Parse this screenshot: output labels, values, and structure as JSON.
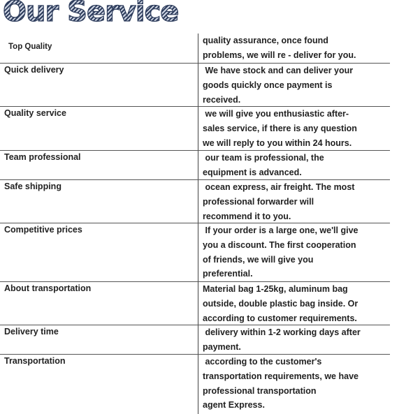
{
  "title": "Our Service",
  "rows": [
    {
      "label": "Top Quality",
      "text": "quality assurance, once found\nproblems, we will re - deliver for you."
    },
    {
      "label": "Quick delivery",
      "text": " We have stock and can deliver your\ngoods quickly once payment is\nreceived."
    },
    {
      "label": "Quality service",
      "text": " we will give you enthusiastic after-\nsales service, if there is any question\nwe will reply to you within 24 hours."
    },
    {
      "label": "Team professional",
      "text": " our team is professional, the\nequipment is advanced."
    },
    {
      "label": "Safe shipping",
      "text": " ocean express, air freight. The most\nprofessional forwarder will\nrecommend it to you."
    },
    {
      "label": "Competitive prices",
      "text": " If your order is a large one, we'll give\nyou a discount. The first cooperation\nof friends, we will give you\npreferential."
    },
    {
      "label": "About transportation",
      "text": "Material bag 1-25kg, aluminum bag\noutside, double plastic bag inside. Or\naccording to customer requirements."
    },
    {
      "label": "Delivery time",
      "text": " delivery within 1-2 working days after\npayment."
    },
    {
      "label": "Transportation",
      "text": " according to the customer's\ntransportation requirements, we have\nprofessional transportation\nagent Express."
    }
  ]
}
